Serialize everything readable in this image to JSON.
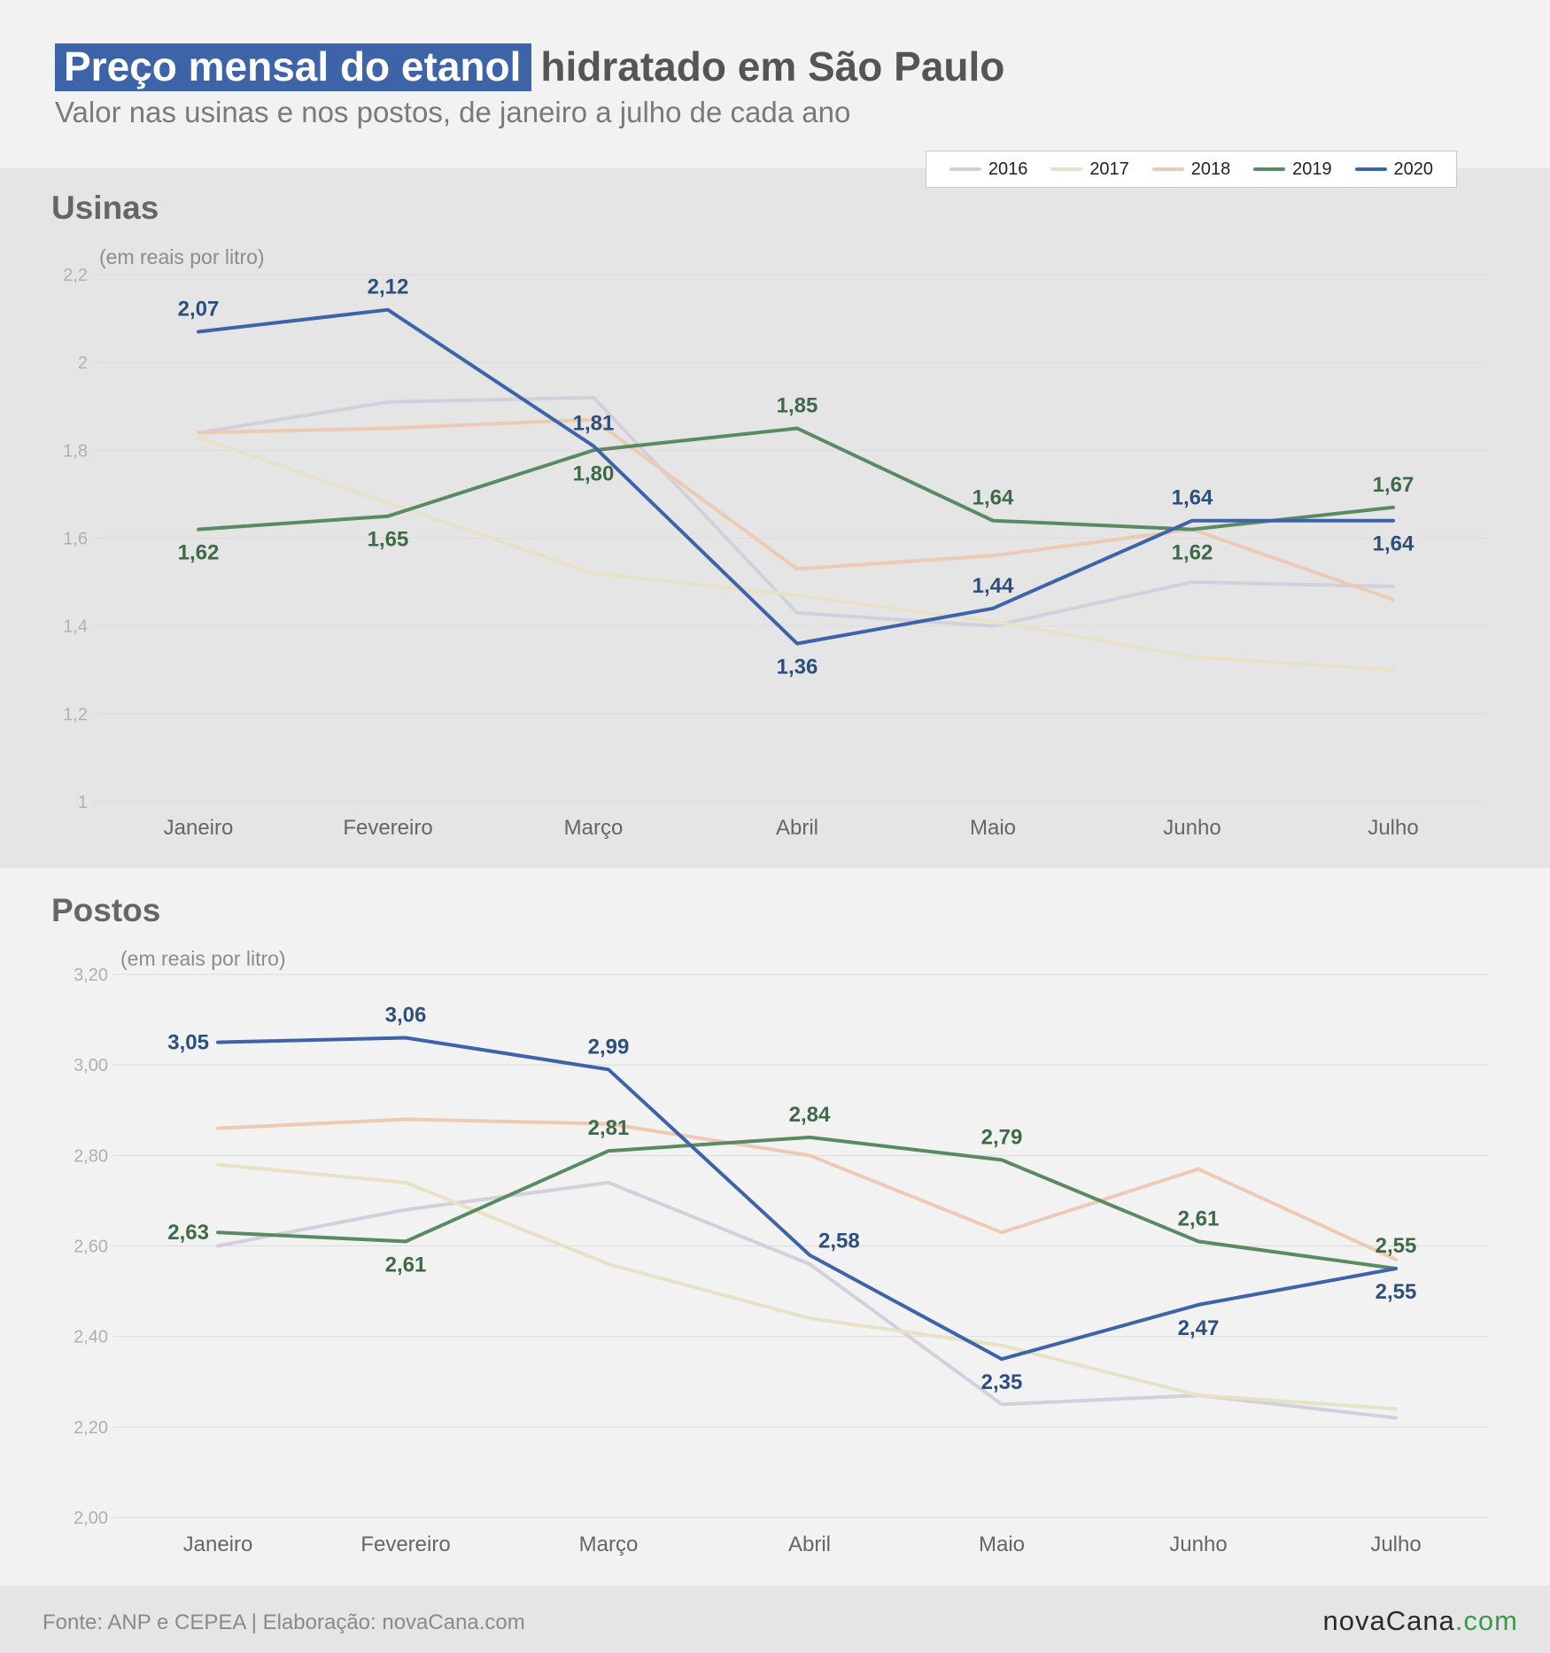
{
  "header": {
    "title_highlight": "Preço mensal do etanol",
    "title_rest": "hidratado em São Paulo",
    "subtitle": "Valor nas usinas e nos postos, de janeiro a julho de cada ano"
  },
  "legend": [
    {
      "label": "2016",
      "color": "#d3cfdd"
    },
    {
      "label": "2017",
      "color": "#e7e1c6"
    },
    {
      "label": "2018",
      "color": "#eccab3"
    },
    {
      "label": "2019",
      "color": "#5a8a64"
    },
    {
      "label": "2020",
      "color": "#3d63a9"
    }
  ],
  "colors": {
    "label_2019": "#3f6a48",
    "label_2020": "#2d4f7d",
    "axis_text": "#b0b0b0",
    "grid": "#dcdcdc"
  },
  "chart_data": [
    {
      "type": "line",
      "title": "Usinas",
      "ylabel": "(em reais por litro)",
      "categories": [
        "Janeiro",
        "Fevereiro",
        "Março",
        "Abril",
        "Maio",
        "Junho",
        "Julho"
      ],
      "ylim": [
        1,
        2.2
      ],
      "yticks": [
        1,
        1.2,
        1.4,
        1.6,
        1.8,
        2,
        2.2
      ],
      "ytick_labels": [
        "1",
        "1,2",
        "1,4",
        "1,6",
        "1,8",
        "2",
        "2,2"
      ],
      "series": [
        {
          "name": "2016",
          "values": [
            1.84,
            1.91,
            1.92,
            1.43,
            1.4,
            1.5,
            1.49
          ]
        },
        {
          "name": "2017",
          "values": [
            1.83,
            1.68,
            1.52,
            1.47,
            1.41,
            1.33,
            1.3
          ]
        },
        {
          "name": "2018",
          "values": [
            1.84,
            1.85,
            1.87,
            1.53,
            1.56,
            1.62,
            1.46
          ]
        },
        {
          "name": "2019",
          "values": [
            1.62,
            1.65,
            1.8,
            1.85,
            1.64,
            1.62,
            1.67
          ],
          "labels": [
            "1,62",
            "1,65",
            "1,80",
            "1,85",
            "1,64",
            "1,62",
            "1,67"
          ],
          "label_pos": [
            "below",
            "below",
            "below",
            "above",
            "above",
            "below",
            "above"
          ]
        },
        {
          "name": "2020",
          "values": [
            2.07,
            2.12,
            1.81,
            1.36,
            1.44,
            1.64,
            1.64
          ],
          "labels": [
            "2,07",
            "2,12",
            "1,81",
            "1,36",
            "1,44",
            "1,64",
            "1,64"
          ],
          "label_pos": [
            "above",
            "above",
            "above",
            "below",
            "above",
            "above",
            "below"
          ]
        }
      ]
    },
    {
      "type": "line",
      "title": "Postos",
      "ylabel": "(em reais por litro)",
      "categories": [
        "Janeiro",
        "Fevereiro",
        "Março",
        "Abril",
        "Maio",
        "Junho",
        "Julho"
      ],
      "ylim": [
        2.0,
        3.2
      ],
      "yticks": [
        2.0,
        2.2,
        2.4,
        2.6,
        2.8,
        3.0,
        3.2
      ],
      "ytick_labels": [
        "2,00",
        "2,20",
        "2,40",
        "2,60",
        "2,80",
        "3,00",
        "3,20"
      ],
      "series": [
        {
          "name": "2016",
          "values": [
            2.6,
            2.68,
            2.74,
            2.56,
            2.25,
            2.27,
            2.22
          ]
        },
        {
          "name": "2017",
          "values": [
            2.78,
            2.74,
            2.56,
            2.44,
            2.38,
            2.27,
            2.24
          ]
        },
        {
          "name": "2018",
          "values": [
            2.86,
            2.88,
            2.87,
            2.8,
            2.63,
            2.77,
            2.57
          ]
        },
        {
          "name": "2019",
          "values": [
            2.63,
            2.61,
            2.81,
            2.84,
            2.79,
            2.61,
            2.55
          ],
          "labels": [
            "2,63",
            "2,61",
            "2,81",
            "2,84",
            "2,79",
            "2,61",
            "2,55"
          ],
          "label_pos": [
            "left",
            "below",
            "above",
            "above",
            "above",
            "above",
            "above"
          ]
        },
        {
          "name": "2020",
          "values": [
            3.05,
            3.06,
            2.99,
            2.58,
            2.35,
            2.47,
            2.55
          ],
          "labels": [
            "3,05",
            "3,06",
            "2,99",
            "2,58",
            "2,35",
            "2,47",
            "2,55"
          ],
          "label_pos": [
            "left",
            "above",
            "above",
            "right",
            "below",
            "below",
            "below"
          ]
        }
      ]
    }
  ],
  "footer": {
    "source": "Fonte: ANP e CEPEA | Elaboração: novaCana.com",
    "logo_main": "novaCana",
    "logo_suffix": ".com"
  }
}
